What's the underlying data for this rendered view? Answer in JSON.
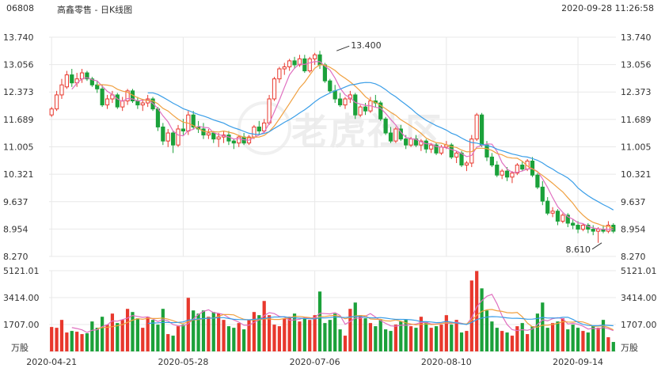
{
  "header": {
    "code": "06808",
    "title": "高鑫零售 - 日K线图",
    "datetime": "2020-09-28 11:26:58"
  },
  "watermark": "老虎社区",
  "colors": {
    "up": "#e8382d",
    "down": "#1ba13a",
    "ma5": "#e070c0",
    "ma10": "#f0a040",
    "ma20": "#3a9ee8",
    "grid": "#e8e8e8"
  },
  "chart_data": {
    "type": "candlestick",
    "price_axis": {
      "ylim": [
        8.27,
        13.74
      ],
      "ticks": [
        "13.740",
        "13.056",
        "12.373",
        "11.689",
        "11.005",
        "10.321",
        "9.637",
        "8.954",
        "8.270"
      ]
    },
    "volume_axis": {
      "ylim": [
        0,
        5121.01
      ],
      "ticks": [
        "5121.01",
        "3414.00",
        "1707.00"
      ],
      "unit": "万股"
    },
    "x_ticks": [
      "2020-04-21",
      "2020-05-28",
      "2020-07-06",
      "2020-08-10",
      "2020-09-14"
    ],
    "x_tick_index": [
      0,
      26,
      52,
      78,
      104
    ],
    "annotations": [
      {
        "label": "13.400",
        "index": 56,
        "price": 13.4
      },
      {
        "label": "8.610",
        "index": 109,
        "price": 8.61
      }
    ],
    "candles": [
      [
        11.8,
        12.0,
        11.75,
        11.95,
        1550
      ],
      [
        11.95,
        12.4,
        11.9,
        12.3,
        1500
      ],
      [
        12.3,
        12.7,
        12.2,
        12.55,
        2000
      ],
      [
        12.5,
        12.9,
        12.45,
        12.8,
        1200
      ],
      [
        12.8,
        12.95,
        12.5,
        12.6,
        1300
      ],
      [
        12.6,
        12.85,
        12.5,
        12.7,
        1250
      ],
      [
        12.7,
        12.95,
        12.6,
        12.85,
        1100
      ],
      [
        12.85,
        12.9,
        12.65,
        12.7,
        1150
      ],
      [
        12.7,
        12.75,
        12.5,
        12.55,
        1900
      ],
      [
        12.55,
        12.65,
        12.35,
        12.45,
        1500
      ],
      [
        12.45,
        12.55,
        12.0,
        12.05,
        2200
      ],
      [
        12.05,
        12.3,
        11.95,
        12.2,
        1700
      ],
      [
        12.2,
        12.4,
        12.1,
        12.3,
        2400
      ],
      [
        12.3,
        12.35,
        11.95,
        12.0,
        1800
      ],
      [
        12.0,
        12.25,
        11.9,
        12.15,
        2000
      ],
      [
        12.15,
        12.45,
        12.05,
        12.4,
        2700
      ],
      [
        12.4,
        12.45,
        12.1,
        12.15,
        2500
      ],
      [
        12.15,
        12.25,
        11.95,
        12.05,
        2100
      ],
      [
        12.05,
        12.2,
        11.9,
        12.1,
        1500
      ],
      [
        12.1,
        12.3,
        12.0,
        12.2,
        2200
      ],
      [
        12.2,
        12.25,
        11.9,
        11.95,
        2000
      ],
      [
        11.95,
        12.0,
        11.4,
        11.5,
        1700
      ],
      [
        11.5,
        11.6,
        11.05,
        11.15,
        2700
      ],
      [
        11.15,
        11.45,
        11.0,
        11.35,
        1100
      ],
      [
        11.35,
        11.4,
        10.85,
        11.05,
        1000
      ],
      [
        11.05,
        11.55,
        11.0,
        11.45,
        1600
      ],
      [
        11.45,
        11.7,
        11.3,
        11.4,
        1700
      ],
      [
        11.4,
        11.9,
        11.3,
        11.8,
        3400
      ],
      [
        11.8,
        11.9,
        11.45,
        11.5,
        2600
      ],
      [
        11.5,
        11.65,
        11.35,
        11.45,
        2400
      ],
      [
        11.45,
        11.6,
        11.2,
        11.3,
        2600
      ],
      [
        11.3,
        11.45,
        11.2,
        11.35,
        2200
      ],
      [
        11.35,
        11.4,
        11.1,
        11.2,
        2500
      ],
      [
        11.2,
        11.35,
        11.0,
        11.25,
        2400
      ],
      [
        11.25,
        11.4,
        11.1,
        11.3,
        2000
      ],
      [
        11.3,
        11.4,
        11.05,
        11.15,
        1600
      ],
      [
        11.15,
        11.2,
        10.95,
        11.1,
        1500
      ],
      [
        11.1,
        11.3,
        11.0,
        11.25,
        1800
      ],
      [
        11.25,
        11.35,
        11.05,
        11.1,
        1400
      ],
      [
        11.1,
        11.3,
        11.05,
        11.25,
        2000
      ],
      [
        11.25,
        11.55,
        11.2,
        11.5,
        2500
      ],
      [
        11.5,
        11.65,
        11.3,
        11.4,
        2300
      ],
      [
        11.4,
        11.7,
        11.35,
        11.6,
        3200
      ],
      [
        11.6,
        12.3,
        11.55,
        12.2,
        2300
      ],
      [
        12.2,
        12.75,
        12.15,
        12.7,
        1700
      ],
      [
        12.7,
        13.0,
        12.6,
        12.95,
        1600
      ],
      [
        12.95,
        13.1,
        12.8,
        13.0,
        2100
      ],
      [
        13.0,
        13.2,
        12.9,
        13.15,
        2200
      ],
      [
        13.15,
        13.25,
        12.95,
        13.05,
        2400
      ],
      [
        13.05,
        13.3,
        13.0,
        13.2,
        1900
      ],
      [
        13.2,
        13.3,
        12.85,
        12.9,
        2100
      ],
      [
        12.9,
        13.25,
        12.85,
        13.2,
        2000
      ],
      [
        13.2,
        13.35,
        13.05,
        13.3,
        2300
      ],
      [
        13.3,
        13.4,
        12.95,
        13.05,
        3800
      ],
      [
        13.05,
        13.1,
        12.6,
        12.65,
        1800
      ],
      [
        12.65,
        12.7,
        12.35,
        12.4,
        2000
      ],
      [
        12.4,
        12.55,
        12.1,
        12.2,
        2400
      ],
      [
        12.2,
        12.35,
        12.0,
        12.05,
        1400
      ],
      [
        12.05,
        12.25,
        11.95,
        12.2,
        1000
      ],
      [
        12.2,
        12.4,
        12.1,
        12.3,
        2700
      ],
      [
        12.3,
        12.35,
        11.7,
        11.8,
        3100
      ],
      [
        11.8,
        12.05,
        11.75,
        12.0,
        2300
      ],
      [
        12.0,
        12.1,
        11.8,
        11.9,
        2100
      ],
      [
        11.9,
        12.25,
        11.85,
        12.15,
        1800
      ],
      [
        12.15,
        12.3,
        12.0,
        12.1,
        1600
      ],
      [
        12.1,
        12.15,
        11.65,
        11.7,
        2000
      ],
      [
        11.7,
        11.75,
        11.3,
        11.35,
        1400
      ],
      [
        11.35,
        11.5,
        11.1,
        11.15,
        1300
      ],
      [
        11.15,
        11.5,
        11.1,
        11.45,
        1700
      ],
      [
        11.45,
        11.55,
        11.15,
        11.2,
        1900
      ],
      [
        11.2,
        11.3,
        10.95,
        11.05,
        2000
      ],
      [
        11.05,
        11.25,
        11.0,
        11.2,
        1600
      ],
      [
        11.2,
        11.3,
        11.0,
        11.05,
        1500
      ],
      [
        11.05,
        11.2,
        10.9,
        11.15,
        2200
      ],
      [
        11.15,
        11.2,
        10.85,
        10.95,
        1900
      ],
      [
        10.95,
        11.1,
        10.85,
        11.05,
        1500
      ],
      [
        11.05,
        11.1,
        10.8,
        10.85,
        1600
      ],
      [
        10.85,
        11.05,
        10.8,
        11.0,
        1700
      ],
      [
        11.0,
        11.15,
        10.95,
        11.05,
        2300
      ],
      [
        11.05,
        11.1,
        10.7,
        10.75,
        1700
      ],
      [
        10.75,
        10.9,
        10.6,
        10.85,
        2000
      ],
      [
        10.85,
        10.9,
        10.5,
        10.55,
        1200
      ],
      [
        10.55,
        10.65,
        10.4,
        10.6,
        1300
      ],
      [
        10.6,
        11.3,
        10.5,
        11.2,
        4500
      ],
      [
        11.2,
        11.85,
        11.15,
        11.8,
        5100
      ],
      [
        11.8,
        11.85,
        11.0,
        11.05,
        4000
      ],
      [
        11.05,
        11.15,
        10.65,
        10.75,
        2600
      ],
      [
        10.75,
        10.85,
        10.5,
        10.55,
        1900
      ],
      [
        10.55,
        10.65,
        10.25,
        10.3,
        1500
      ],
      [
        10.3,
        10.45,
        10.2,
        10.4,
        1300
      ],
      [
        10.4,
        10.5,
        10.15,
        10.25,
        1200
      ],
      [
        10.25,
        10.4,
        10.1,
        10.35,
        1000
      ],
      [
        10.35,
        10.6,
        10.3,
        10.55,
        1600
      ],
      [
        10.55,
        10.65,
        10.4,
        10.45,
        1800
      ],
      [
        10.45,
        10.7,
        10.4,
        10.65,
        1100
      ],
      [
        10.65,
        10.75,
        10.25,
        10.3,
        1600
      ],
      [
        10.3,
        10.35,
        9.95,
        10.0,
        2400
      ],
      [
        10.0,
        10.15,
        9.55,
        9.65,
        3100
      ],
      [
        9.65,
        9.75,
        9.3,
        9.35,
        1500
      ],
      [
        9.35,
        9.5,
        9.25,
        9.4,
        1800
      ],
      [
        9.4,
        9.45,
        9.05,
        9.15,
        1900
      ],
      [
        9.15,
        9.35,
        9.1,
        9.3,
        2100
      ],
      [
        9.3,
        9.35,
        9.0,
        9.1,
        1400
      ],
      [
        9.1,
        9.2,
        8.95,
        9.05,
        1700
      ],
      [
        9.05,
        9.15,
        8.85,
        8.95,
        1500
      ],
      [
        8.95,
        9.1,
        8.9,
        9.05,
        1300
      ],
      [
        9.05,
        9.1,
        8.85,
        8.95,
        1200
      ],
      [
        8.95,
        9.05,
        8.8,
        8.9,
        1600
      ],
      [
        8.9,
        9.0,
        8.61,
        8.95,
        1500
      ],
      [
        8.95,
        9.05,
        8.85,
        8.9,
        2000
      ],
      [
        8.9,
        9.15,
        8.85,
        9.05,
        900
      ],
      [
        9.05,
        9.1,
        8.85,
        8.9,
        600
      ]
    ]
  }
}
